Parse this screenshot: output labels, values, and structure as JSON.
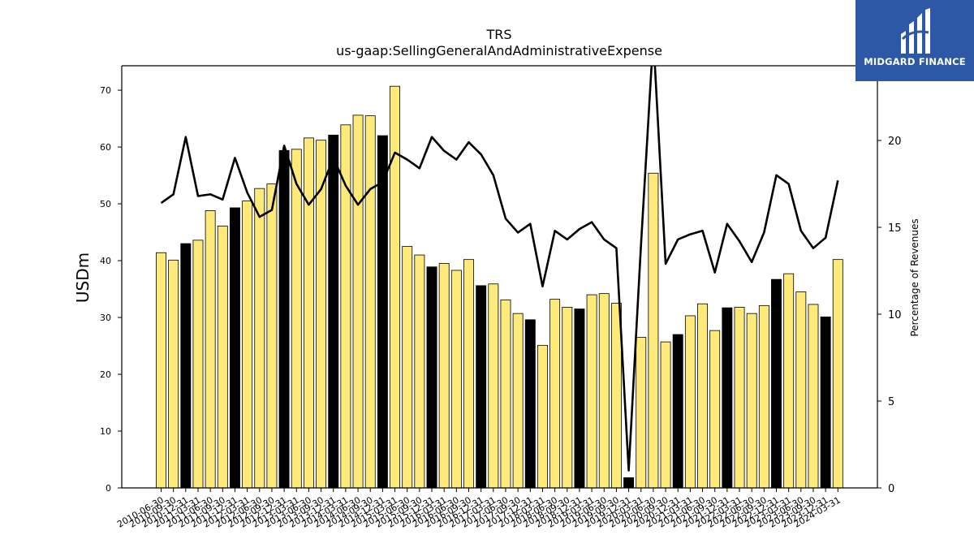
{
  "chart_data": {
    "type": "bar+line",
    "title": "TRS",
    "subtitle": "us-gaap:SellingGeneralAndAdministrativeExpense",
    "ylabel": "USDm",
    "y2label": "Percentage of Revenues",
    "ylim": [
      0,
      74.3
    ],
    "y2lim": [
      0,
      24.3
    ],
    "yticks": [
      0,
      10,
      20,
      30,
      40,
      50,
      60,
      70
    ],
    "y2ticks": [
      0,
      5,
      10,
      15,
      20
    ],
    "colors": {
      "bar": "#fdea7a",
      "bar_highlight": "#000000",
      "line": "#000000"
    },
    "categories": [
      "2010-06-30",
      "2010-09-30",
      "2010-12-31",
      "2011-03-31",
      "2011-06-30",
      "2011-09-30",
      "2011-12-31",
      "2012-03-31",
      "2012-06-30",
      "2012-09-30",
      "2012-12-31",
      "2013-03-31",
      "2013-06-30",
      "2013-09-30",
      "2013-12-31",
      "2014-03-31",
      "2014-06-30",
      "2014-09-30",
      "2014-12-31",
      "2015-03-31",
      "2015-06-30",
      "2015-09-30",
      "2015-12-31",
      "2016-03-31",
      "2016-06-30",
      "2016-09-30",
      "2016-12-31",
      "2017-03-31",
      "2017-06-30",
      "2017-09-30",
      "2017-12-31",
      "2018-03-31",
      "2018-06-30",
      "2018-09-30",
      "2018-12-31",
      "2019-03-31",
      "2019-06-30",
      "2019-09-30",
      "2019-12-31",
      "2020-03-31",
      "2020-06-30",
      "2020-09-30",
      "2020-12-31",
      "2021-03-31",
      "2021-06-30",
      "2021-09-30",
      "2021-12-31",
      "2022-03-31",
      "2022-06-30",
      "2022-09-30",
      "2022-12-31",
      "2023-03-31",
      "2023-06-30",
      "2023-09-30",
      "2023-12-31",
      "2024-03-31"
    ],
    "series": [
      {
        "type": "bar",
        "values": [
          41.4,
          40.1,
          43.0,
          43.6,
          48.8,
          46.1,
          49.3,
          50.5,
          52.7,
          53.5,
          59.4,
          59.6,
          61.6,
          61.2,
          62.1,
          63.9,
          65.6,
          65.5,
          62.0,
          70.7,
          42.5,
          41.0,
          38.9,
          39.5,
          38.3,
          40.2,
          35.6,
          35.9,
          33.1,
          30.7,
          29.6,
          25.1,
          33.2,
          31.8,
          31.5,
          34.0,
          34.2,
          32.5,
          1.8,
          26.5,
          55.4,
          25.7,
          27.0,
          30.3,
          32.4,
          27.7,
          31.7,
          31.8,
          30.7,
          32.1,
          36.7,
          37.7,
          34.5,
          32.3,
          30.1,
          40.2
        ],
        "highlight": [
          2,
          6,
          10,
          14,
          18,
          22,
          26,
          30,
          34,
          38,
          42,
          46,
          50,
          54
        ]
      },
      {
        "type": "line",
        "axis": "right",
        "values": [
          16.4,
          16.9,
          20.2,
          16.8,
          16.9,
          16.6,
          19.0,
          17.0,
          15.6,
          16.0,
          19.7,
          17.5,
          16.3,
          17.2,
          19.0,
          17.4,
          16.3,
          17.2,
          17.6,
          19.3,
          18.9,
          18.4,
          20.2,
          19.4,
          18.9,
          19.9,
          19.2,
          18.0,
          15.5,
          14.7,
          15.2,
          11.6,
          14.8,
          14.3,
          14.9,
          15.3,
          14.3,
          13.8,
          1.0,
          14.0,
          26.0,
          12.9,
          14.3,
          14.6,
          14.8,
          12.4,
          15.2,
          14.2,
          13.0,
          14.7,
          18.0,
          17.5,
          14.8,
          13.8,
          14.4,
          17.7
        ]
      }
    ]
  },
  "logo": {
    "text": "MIDGARD FINANCE"
  }
}
